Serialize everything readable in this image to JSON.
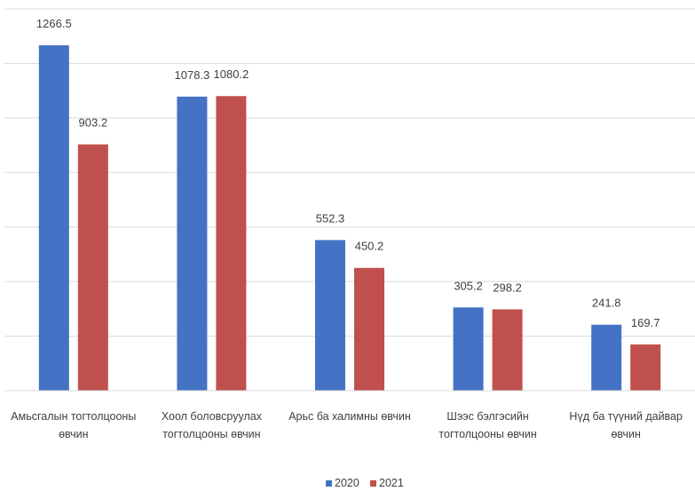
{
  "chart_data": {
    "type": "bar",
    "categories": [
      [
        "Амьсгалын тогтолцооны",
        "өвчин"
      ],
      [
        "Хоол боловсруулах",
        "тогтолцооны өвчин"
      ],
      [
        "Арьс ба халимны өвчин"
      ],
      [
        "Шээс бэлгэсийн",
        "тогтолцооны өвчин"
      ],
      [
        "Нүд ба түүний дайвар",
        "өвчин"
      ]
    ],
    "series": [
      {
        "name": "2020",
        "color": "#4472c4",
        "values": [
          1266.5,
          1078.3,
          552.3,
          305.2,
          241.8
        ]
      },
      {
        "name": "2021",
        "color": "#c0504d",
        "values": [
          903.2,
          1080.2,
          450.2,
          298.2,
          169.7
        ]
      }
    ],
    "ylim": [
      0,
      1400
    ],
    "grid": true,
    "legend": "bottom"
  }
}
